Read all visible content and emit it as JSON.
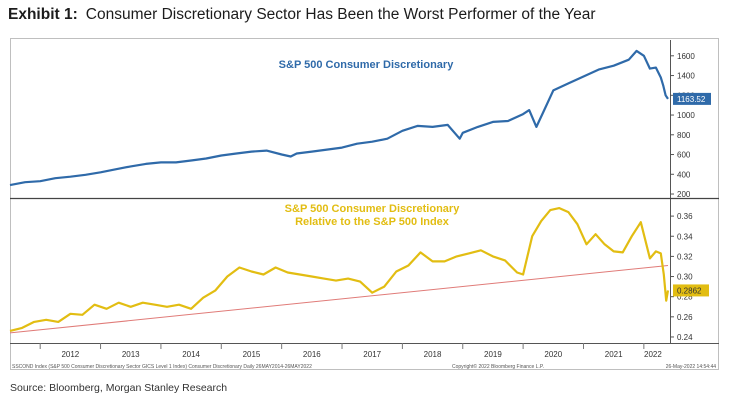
{
  "exhibit": {
    "label": "Exhibit 1:",
    "title": "Consumer Discretionary Sector Has Been the Worst Performer of the Year"
  },
  "footer": {
    "index_note": "SSCOND Index (S&P 500 Consumer Discretionary Sector GICS Level 1 Index) Consumer Discretionary  Daily 26MAY2014-26MAY2022",
    "copyright": "Copyright© 2022 Bloomberg Finance L.P.",
    "timestamp": "26-May-2022 14:54:44",
    "source": "Source: Bloomberg, Morgan Stanley Research"
  },
  "colors": {
    "top_series": "#2f6aa9",
    "bottom_series": "#e2bd12",
    "trendline": "#e07b78",
    "last_value_tag_top": "#2f6aa9",
    "last_value_tag_bottom": "#e2bd12"
  },
  "chart_data": [
    {
      "type": "line",
      "title": "S&P 500 Consumer Discretionary",
      "xlim": [
        2011.5,
        2022.4
      ],
      "ylim": [
        180,
        1760
      ],
      "yticks": [
        "200",
        "400",
        "600",
        "800",
        "1000",
        "1200",
        "1400",
        "1600"
      ],
      "last_value_label": "1163.52",
      "series": [
        {
          "x": [
            2011.5,
            2011.75,
            2012.0,
            2012.25,
            2012.5,
            2012.75,
            2013.0,
            2013.25,
            2013.5,
            2013.75,
            2014.0,
            2014.25,
            2014.5,
            2014.75,
            2015.0,
            2015.25,
            2015.5,
            2015.75,
            2016.0,
            2016.15,
            2016.25,
            2016.5,
            2016.75,
            2017.0,
            2017.25,
            2017.5,
            2017.75,
            2018.0,
            2018.25,
            2018.5,
            2018.75,
            2018.95,
            2019.0,
            2019.25,
            2019.5,
            2019.75,
            2020.0,
            2020.1,
            2020.22,
            2020.35,
            2020.5,
            2020.75,
            2021.0,
            2021.25,
            2021.5,
            2021.75,
            2021.88,
            2022.0,
            2022.1,
            2022.2,
            2022.28,
            2022.32,
            2022.36,
            2022.4
          ],
          "values": [
            290,
            320,
            330,
            360,
            375,
            395,
            420,
            450,
            480,
            505,
            520,
            520,
            540,
            560,
            590,
            610,
            630,
            640,
            600,
            580,
            610,
            630,
            650,
            670,
            710,
            730,
            760,
            840,
            890,
            880,
            900,
            760,
            820,
            880,
            930,
            940,
            1010,
            1050,
            880,
            1050,
            1250,
            1320,
            1390,
            1460,
            1500,
            1560,
            1650,
            1600,
            1470,
            1480,
            1380,
            1300,
            1200,
            1163.52
          ]
        }
      ]
    },
    {
      "type": "line",
      "title": "S&P 500 Consumer Discretionary Relative to the S&P 500 Index",
      "xlim": [
        2011.5,
        2022.4
      ],
      "ylim": [
        0.235,
        0.375
      ],
      "yticks": [
        "0.24",
        "0.26",
        "0.28",
        "0.30",
        "0.32",
        "0.34",
        "0.36"
      ],
      "last_value_label": "0.2862",
      "xticks": [
        "2012",
        "2013",
        "2014",
        "2015",
        "2016",
        "2017",
        "2018",
        "2019",
        "2020",
        "2021",
        "2022"
      ],
      "series": [
        {
          "x": [
            2011.5,
            2011.7,
            2011.9,
            2012.1,
            2012.3,
            2012.5,
            2012.7,
            2012.9,
            2013.1,
            2013.3,
            2013.5,
            2013.7,
            2013.9,
            2014.1,
            2014.3,
            2014.5,
            2014.7,
            2014.9,
            2015.1,
            2015.3,
            2015.5,
            2015.7,
            2015.9,
            2016.1,
            2016.3,
            2016.5,
            2016.7,
            2016.9,
            2017.1,
            2017.3,
            2017.5,
            2017.7,
            2017.9,
            2018.1,
            2018.3,
            2018.5,
            2018.7,
            2018.9,
            2019.1,
            2019.3,
            2019.5,
            2019.7,
            2019.9,
            2020.0,
            2020.15,
            2020.3,
            2020.45,
            2020.6,
            2020.75,
            2020.9,
            2021.05,
            2021.2,
            2021.35,
            2021.5,
            2021.65,
            2021.8,
            2021.95,
            2022.1,
            2022.2,
            2022.28,
            2022.33,
            2022.37,
            2022.4
          ],
          "values": [
            0.246,
            0.249,
            0.255,
            0.257,
            0.255,
            0.263,
            0.262,
            0.272,
            0.268,
            0.274,
            0.27,
            0.274,
            0.272,
            0.27,
            0.272,
            0.268,
            0.279,
            0.286,
            0.3,
            0.309,
            0.305,
            0.302,
            0.309,
            0.304,
            0.302,
            0.3,
            0.298,
            0.296,
            0.298,
            0.295,
            0.284,
            0.29,
            0.305,
            0.311,
            0.324,
            0.315,
            0.315,
            0.32,
            0.323,
            0.326,
            0.32,
            0.316,
            0.304,
            0.302,
            0.34,
            0.355,
            0.366,
            0.368,
            0.364,
            0.352,
            0.332,
            0.342,
            0.332,
            0.325,
            0.324,
            0.34,
            0.354,
            0.318,
            0.325,
            0.323,
            0.302,
            0.276,
            0.2862
          ]
        },
        {
          "name": "trendline",
          "x": [
            2011.5,
            2022.4
          ],
          "values": [
            0.244,
            0.311
          ]
        }
      ]
    }
  ]
}
